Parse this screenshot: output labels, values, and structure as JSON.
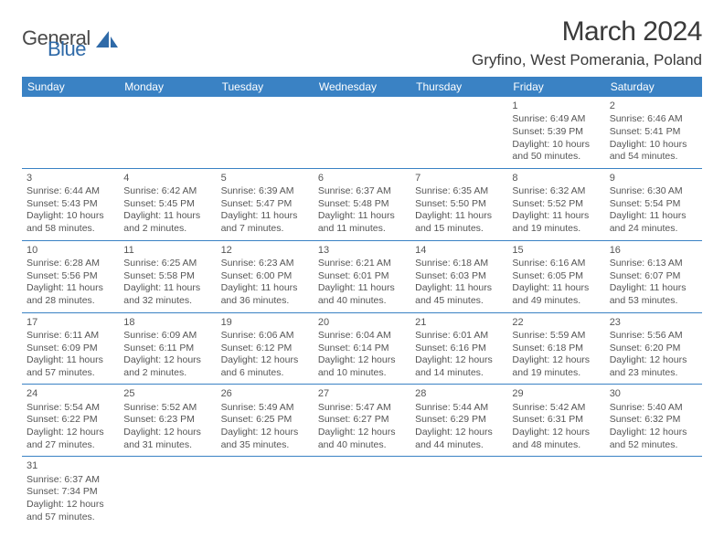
{
  "logo": {
    "part1": "General",
    "part2": "Blue",
    "logo_color": "#2f6aa8"
  },
  "title": {
    "month": "March 2024",
    "location": "Gryfino, West Pomerania, Poland"
  },
  "header_bg": "#3a82c4",
  "weekdays": [
    "Sunday",
    "Monday",
    "Tuesday",
    "Wednesday",
    "Thursday",
    "Friday",
    "Saturday"
  ],
  "weeks": [
    [
      null,
      null,
      null,
      null,
      null,
      {
        "n": "1",
        "sunrise": "Sunrise: 6:49 AM",
        "sunset": "Sunset: 5:39 PM",
        "d1": "Daylight: 10 hours",
        "d2": "and 50 minutes."
      },
      {
        "n": "2",
        "sunrise": "Sunrise: 6:46 AM",
        "sunset": "Sunset: 5:41 PM",
        "d1": "Daylight: 10 hours",
        "d2": "and 54 minutes."
      }
    ],
    [
      {
        "n": "3",
        "sunrise": "Sunrise: 6:44 AM",
        "sunset": "Sunset: 5:43 PM",
        "d1": "Daylight: 10 hours",
        "d2": "and 58 minutes."
      },
      {
        "n": "4",
        "sunrise": "Sunrise: 6:42 AM",
        "sunset": "Sunset: 5:45 PM",
        "d1": "Daylight: 11 hours",
        "d2": "and 2 minutes."
      },
      {
        "n": "5",
        "sunrise": "Sunrise: 6:39 AM",
        "sunset": "Sunset: 5:47 PM",
        "d1": "Daylight: 11 hours",
        "d2": "and 7 minutes."
      },
      {
        "n": "6",
        "sunrise": "Sunrise: 6:37 AM",
        "sunset": "Sunset: 5:48 PM",
        "d1": "Daylight: 11 hours",
        "d2": "and 11 minutes."
      },
      {
        "n": "7",
        "sunrise": "Sunrise: 6:35 AM",
        "sunset": "Sunset: 5:50 PM",
        "d1": "Daylight: 11 hours",
        "d2": "and 15 minutes."
      },
      {
        "n": "8",
        "sunrise": "Sunrise: 6:32 AM",
        "sunset": "Sunset: 5:52 PM",
        "d1": "Daylight: 11 hours",
        "d2": "and 19 minutes."
      },
      {
        "n": "9",
        "sunrise": "Sunrise: 6:30 AM",
        "sunset": "Sunset: 5:54 PM",
        "d1": "Daylight: 11 hours",
        "d2": "and 24 minutes."
      }
    ],
    [
      {
        "n": "10",
        "sunrise": "Sunrise: 6:28 AM",
        "sunset": "Sunset: 5:56 PM",
        "d1": "Daylight: 11 hours",
        "d2": "and 28 minutes."
      },
      {
        "n": "11",
        "sunrise": "Sunrise: 6:25 AM",
        "sunset": "Sunset: 5:58 PM",
        "d1": "Daylight: 11 hours",
        "d2": "and 32 minutes."
      },
      {
        "n": "12",
        "sunrise": "Sunrise: 6:23 AM",
        "sunset": "Sunset: 6:00 PM",
        "d1": "Daylight: 11 hours",
        "d2": "and 36 minutes."
      },
      {
        "n": "13",
        "sunrise": "Sunrise: 6:21 AM",
        "sunset": "Sunset: 6:01 PM",
        "d1": "Daylight: 11 hours",
        "d2": "and 40 minutes."
      },
      {
        "n": "14",
        "sunrise": "Sunrise: 6:18 AM",
        "sunset": "Sunset: 6:03 PM",
        "d1": "Daylight: 11 hours",
        "d2": "and 45 minutes."
      },
      {
        "n": "15",
        "sunrise": "Sunrise: 6:16 AM",
        "sunset": "Sunset: 6:05 PM",
        "d1": "Daylight: 11 hours",
        "d2": "and 49 minutes."
      },
      {
        "n": "16",
        "sunrise": "Sunrise: 6:13 AM",
        "sunset": "Sunset: 6:07 PM",
        "d1": "Daylight: 11 hours",
        "d2": "and 53 minutes."
      }
    ],
    [
      {
        "n": "17",
        "sunrise": "Sunrise: 6:11 AM",
        "sunset": "Sunset: 6:09 PM",
        "d1": "Daylight: 11 hours",
        "d2": "and 57 minutes."
      },
      {
        "n": "18",
        "sunrise": "Sunrise: 6:09 AM",
        "sunset": "Sunset: 6:11 PM",
        "d1": "Daylight: 12 hours",
        "d2": "and 2 minutes."
      },
      {
        "n": "19",
        "sunrise": "Sunrise: 6:06 AM",
        "sunset": "Sunset: 6:12 PM",
        "d1": "Daylight: 12 hours",
        "d2": "and 6 minutes."
      },
      {
        "n": "20",
        "sunrise": "Sunrise: 6:04 AM",
        "sunset": "Sunset: 6:14 PM",
        "d1": "Daylight: 12 hours",
        "d2": "and 10 minutes."
      },
      {
        "n": "21",
        "sunrise": "Sunrise: 6:01 AM",
        "sunset": "Sunset: 6:16 PM",
        "d1": "Daylight: 12 hours",
        "d2": "and 14 minutes."
      },
      {
        "n": "22",
        "sunrise": "Sunrise: 5:59 AM",
        "sunset": "Sunset: 6:18 PM",
        "d1": "Daylight: 12 hours",
        "d2": "and 19 minutes."
      },
      {
        "n": "23",
        "sunrise": "Sunrise: 5:56 AM",
        "sunset": "Sunset: 6:20 PM",
        "d1": "Daylight: 12 hours",
        "d2": "and 23 minutes."
      }
    ],
    [
      {
        "n": "24",
        "sunrise": "Sunrise: 5:54 AM",
        "sunset": "Sunset: 6:22 PM",
        "d1": "Daylight: 12 hours",
        "d2": "and 27 minutes."
      },
      {
        "n": "25",
        "sunrise": "Sunrise: 5:52 AM",
        "sunset": "Sunset: 6:23 PM",
        "d1": "Daylight: 12 hours",
        "d2": "and 31 minutes."
      },
      {
        "n": "26",
        "sunrise": "Sunrise: 5:49 AM",
        "sunset": "Sunset: 6:25 PM",
        "d1": "Daylight: 12 hours",
        "d2": "and 35 minutes."
      },
      {
        "n": "27",
        "sunrise": "Sunrise: 5:47 AM",
        "sunset": "Sunset: 6:27 PM",
        "d1": "Daylight: 12 hours",
        "d2": "and 40 minutes."
      },
      {
        "n": "28",
        "sunrise": "Sunrise: 5:44 AM",
        "sunset": "Sunset: 6:29 PM",
        "d1": "Daylight: 12 hours",
        "d2": "and 44 minutes."
      },
      {
        "n": "29",
        "sunrise": "Sunrise: 5:42 AM",
        "sunset": "Sunset: 6:31 PM",
        "d1": "Daylight: 12 hours",
        "d2": "and 48 minutes."
      },
      {
        "n": "30",
        "sunrise": "Sunrise: 5:40 AM",
        "sunset": "Sunset: 6:32 PM",
        "d1": "Daylight: 12 hours",
        "d2": "and 52 minutes."
      }
    ],
    [
      {
        "n": "31",
        "sunrise": "Sunrise: 6:37 AM",
        "sunset": "Sunset: 7:34 PM",
        "d1": "Daylight: 12 hours",
        "d2": "and 57 minutes."
      },
      null,
      null,
      null,
      null,
      null,
      null
    ]
  ]
}
